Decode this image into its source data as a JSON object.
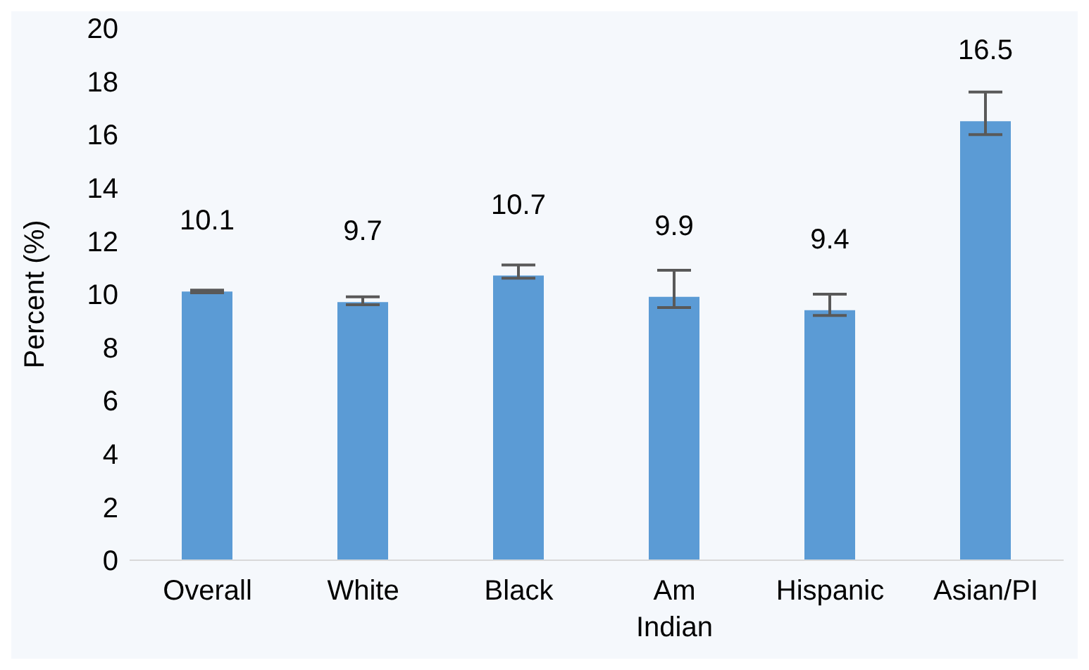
{
  "chart_data": {
    "type": "bar",
    "ylabel": "Percent (%)",
    "categories": [
      "Overall",
      "White",
      "Black",
      "Am Indian",
      "Hispanic",
      "Asian/PI"
    ],
    "values": [
      10.1,
      9.7,
      10.7,
      9.9,
      9.4,
      16.5
    ],
    "errors": [
      0.05,
      [
        9.6,
        9.9
      ],
      [
        10.6,
        11.1
      ],
      [
        9.5,
        10.9
      ],
      [
        9.2,
        10.0
      ],
      [
        16.0,
        17.6
      ]
    ],
    "color": "#5b9bd5",
    "ylim": [
      0,
      20
    ],
    "yticks": [
      0,
      2,
      4,
      6,
      8,
      10,
      12,
      14,
      16,
      18,
      20
    ],
    "data_labels": true
  }
}
